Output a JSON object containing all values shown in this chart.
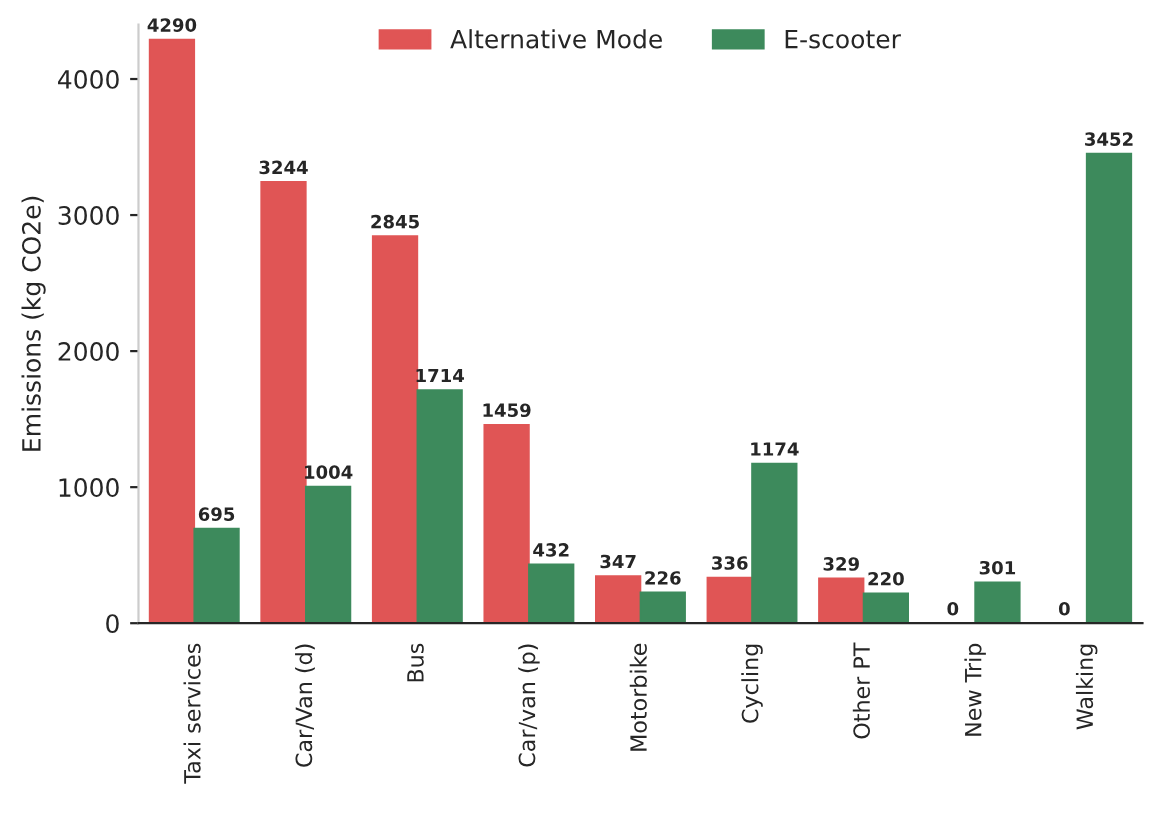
{
  "chart_data": {
    "type": "bar",
    "ylabel": "Emissions (kg CO2e)",
    "categories": [
      "Taxi services",
      "Car/Van (d)",
      "Bus",
      "Car/van (p)",
      "Motorbike",
      "Cycling",
      "Other PT",
      "New Trip",
      "Walking"
    ],
    "series": [
      {
        "name": "Alternative Mode",
        "color": "#e05555",
        "values": [
          4290,
          3244,
          2845,
          1459,
          347,
          336,
          329,
          0,
          0
        ]
      },
      {
        "name": "E-scooter",
        "color": "#3d8a5c",
        "values": [
          695,
          1004,
          1714,
          432,
          226,
          1174,
          220,
          301,
          3452
        ]
      }
    ],
    "ylim": [
      0,
      4400
    ],
    "yticks": [
      0,
      1000,
      2000,
      3000,
      4000
    ],
    "data_labels": true,
    "legend": "top",
    "grid": false
  }
}
